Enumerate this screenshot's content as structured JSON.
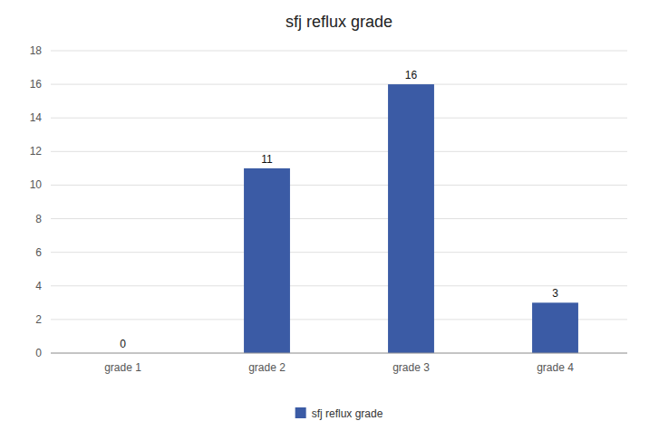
{
  "chart_data": {
    "type": "bar",
    "title": "sfj reflux grade",
    "categories": [
      "grade 1",
      "grade 2",
      "grade 3",
      "grade 4"
    ],
    "series": [
      {
        "name": "sfj reflux grade",
        "color": "#3B5BA5",
        "values": [
          0,
          11,
          16,
          3
        ]
      }
    ],
    "ylim": [
      0,
      18
    ],
    "yticks": [
      0,
      2,
      4,
      6,
      8,
      10,
      12,
      14,
      16,
      18
    ],
    "grid": true,
    "legend": "bottom",
    "data_labels": true
  }
}
